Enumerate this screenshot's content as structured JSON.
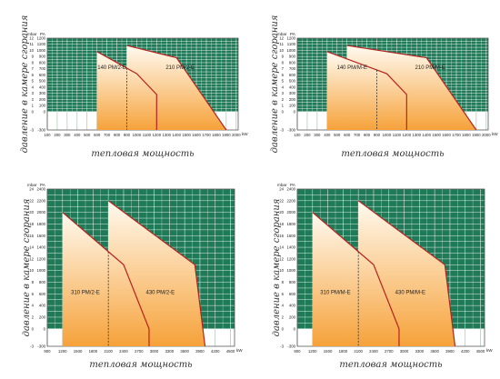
{
  "ylabel": "давление в камере сгорания",
  "xlabel": "тепловая мощность",
  "units": {
    "mbar": "mbar",
    "pa": "PA",
    "kw": "kW"
  },
  "colors": {
    "grid_bg": "#1f7a58",
    "grid_line": "#ffffff",
    "curve": "#b8231f",
    "fill_top": "#fffaf0",
    "fill_bottom": "#f6a23a"
  },
  "chart_data": [
    {
      "type": "area",
      "x_ticks": [
        100,
        200,
        300,
        400,
        500,
        600,
        700,
        800,
        900,
        1000,
        1100,
        1200,
        1300,
        1400,
        1500,
        1600,
        1700,
        1800,
        1900,
        2000
      ],
      "xlim": [
        100,
        2020
      ],
      "pa_ticks": [
        -300,
        0,
        100,
        200,
        300,
        400,
        500,
        600,
        700,
        800,
        900,
        1000,
        1100,
        1200
      ],
      "mbar_ticks": [
        -3,
        0,
        1,
        2,
        3,
        4,
        5,
        6,
        7,
        8,
        9,
        10,
        11,
        12
      ],
      "ylim": [
        -300,
        1200
      ],
      "divider_x": 900,
      "series": [
        {
          "name": "140 PM/2-E",
          "points": [
            [
              600,
              980
            ],
            [
              1000,
              620
            ],
            [
              1200,
              280
            ],
            [
              1200,
              -300
            ],
            [
              600,
              -300
            ]
          ]
        },
        {
          "name": "210 PM/2-E",
          "points": [
            [
              900,
              1080
            ],
            [
              1400,
              880
            ],
            [
              1900,
              -300
            ],
            [
              900,
              -300
            ]
          ]
        }
      ]
    },
    {
      "type": "area",
      "x_ticks": [
        100,
        200,
        300,
        400,
        500,
        600,
        700,
        800,
        900,
        1000,
        1100,
        1200,
        1300,
        1400,
        1500,
        1600,
        1700,
        1800,
        1900,
        2000
      ],
      "xlim": [
        100,
        2020
      ],
      "pa_ticks": [
        -300,
        0,
        100,
        200,
        300,
        400,
        500,
        600,
        700,
        800,
        900,
        1000,
        1100,
        1200
      ],
      "mbar_ticks": [
        -3,
        0,
        1,
        2,
        3,
        4,
        5,
        6,
        7,
        8,
        9,
        10,
        11,
        12
      ],
      "ylim": [
        -300,
        1200
      ],
      "divider_x": 900,
      "series": [
        {
          "name": "140 PM/M-E",
          "points": [
            [
              400,
              980
            ],
            [
              1000,
              620
            ],
            [
              1200,
              280
            ],
            [
              1200,
              -300
            ],
            [
              400,
              -300
            ]
          ]
        },
        {
          "name": "210 PM/M-E",
          "points": [
            [
              600,
              1080
            ],
            [
              1400,
              880
            ],
            [
              1900,
              -300
            ],
            [
              600,
              -300
            ]
          ]
        }
      ]
    },
    {
      "type": "area",
      "x_ticks": [
        900,
        1200,
        1500,
        1800,
        2100,
        2400,
        2700,
        3000,
        3300,
        3600,
        3900,
        4200,
        4500
      ],
      "xlim": [
        900,
        4580
      ],
      "pa_ticks": [
        -300,
        0,
        200,
        400,
        600,
        800,
        1000,
        1200,
        1400,
        1600,
        1800,
        2000,
        2200,
        2400
      ],
      "mbar_ticks": [
        -3,
        0,
        2,
        4,
        6,
        8,
        10,
        12,
        14,
        16,
        18,
        20,
        22,
        24
      ],
      "ylim": [
        -300,
        2400
      ],
      "divider_x": 2100,
      "series": [
        {
          "name": "310 PM/2-E",
          "points": [
            [
              1200,
              2000
            ],
            [
              2400,
              1100
            ],
            [
              2900,
              0
            ],
            [
              2900,
              -300
            ],
            [
              1200,
              -300
            ]
          ]
        },
        {
          "name": "430 PM/2-E",
          "points": [
            [
              2100,
              2200
            ],
            [
              3800,
              1100
            ],
            [
              4000,
              -300
            ],
            [
              2100,
              -300
            ]
          ]
        }
      ]
    },
    {
      "type": "area",
      "x_ticks": [
        900,
        1200,
        1500,
        1800,
        2100,
        2400,
        2700,
        3000,
        3300,
        3600,
        3900,
        4200,
        4500
      ],
      "xlim": [
        900,
        4580
      ],
      "pa_ticks": [
        -300,
        0,
        200,
        400,
        600,
        800,
        1000,
        1200,
        1400,
        1600,
        1800,
        2000,
        2200,
        2400
      ],
      "mbar_ticks": [
        -3,
        0,
        2,
        4,
        6,
        8,
        10,
        12,
        14,
        16,
        18,
        20,
        22,
        24
      ],
      "ylim": [
        -300,
        2400
      ],
      "divider_x": 2100,
      "series": [
        {
          "name": "310 PM/M-E",
          "points": [
            [
              1200,
              2000
            ],
            [
              2400,
              1100
            ],
            [
              2900,
              0
            ],
            [
              2900,
              -300
            ],
            [
              1200,
              -300
            ]
          ]
        },
        {
          "name": "430 PM/M-E",
          "points": [
            [
              2100,
              2200
            ],
            [
              3800,
              1100
            ],
            [
              4000,
              -300
            ],
            [
              2100,
              -300
            ]
          ]
        }
      ]
    }
  ]
}
